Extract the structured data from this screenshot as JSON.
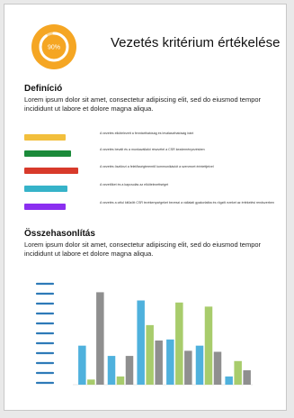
{
  "header": {
    "badge_value": "90%",
    "badge_progress": 0.9,
    "title": "Vezetés kritérium értékelése"
  },
  "definition": {
    "heading": "Definíció",
    "text": "Lorem ipsum dolor sit amet, consectetur adipiscing elit, sed do eiusmod tempor incididunt ut labore et dolore magna aliqua.",
    "items": [
      {
        "color": "#f2bf3c",
        "text": "A vezetés elkötelezett a fenntarthatóság és leválaszthatóság iránt"
      },
      {
        "color": "#1b8a3a",
        "text": "A vezetés bevált és a munkavállalói részvétel a CSR kezdeményezésben"
      },
      {
        "color": "#d83a2b",
        "text": "A vezetés ösztönzi a felelősségteremtő kommunikációt a szervezet érintettjeivel"
      },
      {
        "color": "#36b3c9",
        "text": "A vezetőket és a kapcsolás az elkötelezettséget"
      },
      {
        "color": "#8b2ff0",
        "text": "A vezetés a célul kitűzött CSR tevékenységeket beveszi a vállalati gyakorlatba és rögzíti ezeket az értékelési rendszerben"
      }
    ]
  },
  "comparison": {
    "heading": "Összehasonlítás",
    "text": "Lorem ipsum dolor sit amet, consectetur adipiscing elit, sed do eiusmod tempor incididunt ut labore et dolore magna aliqua."
  },
  "colors": {
    "blue": "#4fb1dd",
    "green": "#a8cc6c",
    "gray": "#8f8f8f",
    "dash": "#2e7ab8"
  },
  "chart_data": {
    "type": "bar",
    "categories": [
      "",
      "",
      "",
      "",
      "",
      ""
    ],
    "series": [
      {
        "values": [
          38,
          28,
          82,
          44,
          38,
          8
        ]
      },
      {
        "values": [
          5,
          8,
          58,
          80,
          76,
          23
        ]
      },
      {
        "values": [
          90,
          28,
          43,
          33,
          32,
          14
        ]
      }
    ],
    "ylim": [
      0,
      100
    ],
    "y_ticks": [],
    "grid": false,
    "legend": "none",
    "left_markers": 11
  }
}
